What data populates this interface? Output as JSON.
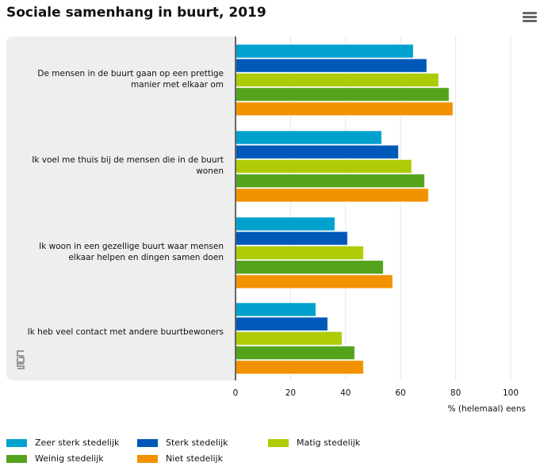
{
  "title": "Sociale samenhang in buurt, 2019",
  "menu_icon": "hamburger-menu-icon",
  "chart_data": {
    "type": "bar",
    "orientation": "horizontal",
    "title": "Sociale samenhang in buurt, 2019",
    "xlabel": "% (helemaal) eens",
    "xlim": [
      0,
      100
    ],
    "xticks": [
      "0",
      "20",
      "40",
      "60",
      "80",
      "100"
    ],
    "grid": true,
    "legend_position": "bottom",
    "categories": [
      "De mensen in de buurt gaan op een prettige manier met elkaar om",
      "Ik voel me thuis bij de mensen die in de buurt wonen",
      "Ik woon in een gezellige buurt waar mensen elkaar helpen en dingen samen doen",
      "Ik heb veel contact met andere buurtbewoners"
    ],
    "series": [
      {
        "name": "Zeer sterk stedelijk",
        "color": "#00a1cd",
        "values": [
          64.6,
          53.1,
          36.1,
          29.2
        ]
      },
      {
        "name": "Sterk stedelijk",
        "color": "#0058b8",
        "values": [
          69.5,
          59.2,
          40.7,
          33.5
        ]
      },
      {
        "name": "Matig stedelijk",
        "color": "#afcb05",
        "values": [
          73.8,
          64.0,
          46.5,
          38.7
        ]
      },
      {
        "name": "Weinig stedelijk",
        "color": "#53a31d",
        "values": [
          77.6,
          68.7,
          53.7,
          43.3
        ]
      },
      {
        "name": "Niet stedelijk",
        "color": "#f39200",
        "values": [
          79.0,
          70.1,
          57.1,
          46.5
        ]
      }
    ]
  }
}
